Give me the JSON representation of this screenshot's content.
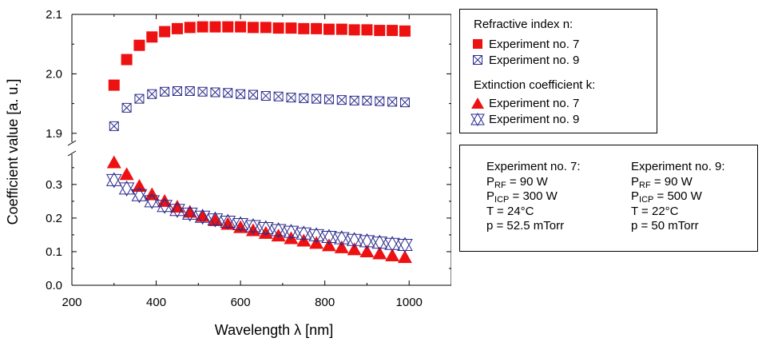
{
  "chart_data": {
    "type": "scatter",
    "xlabel": "Wavelength λ [nm]",
    "ylabel": "Coefficient value [a. u.]",
    "axis_break": true,
    "upper_panel": {
      "ylim": [
        1.885,
        2.1
      ],
      "ytick_labels": [
        "1.9",
        "2.0",
        "2.1"
      ],
      "ytick_values": [
        1.9,
        2.0,
        2.1
      ]
    },
    "lower_panel": {
      "ylim": [
        0.0,
        0.39
      ],
      "ytick_labels": [
        "0.0",
        "0.1",
        "0.2",
        "0.3"
      ],
      "ytick_values": [
        0.0,
        0.1,
        0.2,
        0.3
      ]
    },
    "xlim": [
      200,
      1100
    ],
    "xtick_labels": [
      "200",
      "400",
      "600",
      "800",
      "1000"
    ],
    "xtick_values": [
      200,
      400,
      600,
      800,
      1000
    ],
    "x": [
      300,
      330,
      360,
      390,
      420,
      450,
      480,
      510,
      540,
      570,
      600,
      630,
      660,
      690,
      720,
      750,
      780,
      810,
      840,
      870,
      900,
      930,
      960,
      990
    ],
    "series": [
      {
        "name": "Experiment no. 7",
        "group": "Refractive index n",
        "marker": "square",
        "color": "#ee1111",
        "panel": "upper",
        "values": [
          1.981,
          2.024,
          2.048,
          2.062,
          2.071,
          2.076,
          2.078,
          2.079,
          2.079,
          2.079,
          2.079,
          2.078,
          2.078,
          2.077,
          2.077,
          2.076,
          2.076,
          2.075,
          2.075,
          2.074,
          2.074,
          2.073,
          2.073,
          2.072
        ]
      },
      {
        "name": "Experiment no. 9",
        "group": "Refractive index n",
        "marker": "boxed-x",
        "color": "#2b2b8c",
        "panel": "upper",
        "values": [
          1.912,
          1.943,
          1.958,
          1.966,
          1.97,
          1.971,
          1.971,
          1.97,
          1.969,
          1.968,
          1.966,
          1.965,
          1.963,
          1.962,
          1.96,
          1.959,
          1.958,
          1.957,
          1.956,
          1.955,
          1.955,
          1.954,
          1.953,
          1.952
        ]
      },
      {
        "name": "Experiment no. 7",
        "group": "Extinction coefficient k",
        "marker": "triangle",
        "color": "#ee1111",
        "panel": "lower",
        "values": [
          0.365,
          0.33,
          0.295,
          0.27,
          0.25,
          0.233,
          0.218,
          0.206,
          0.193,
          0.182,
          0.172,
          0.163,
          0.155,
          0.147,
          0.139,
          0.132,
          0.125,
          0.118,
          0.112,
          0.106,
          0.1,
          0.094,
          0.088,
          0.083
        ]
      },
      {
        "name": "Experiment no. 9",
        "group": "Extinction coefficient k",
        "marker": "boxed-x",
        "color": "#2b2b8c",
        "panel": "lower",
        "values": [
          0.313,
          0.288,
          0.268,
          0.25,
          0.236,
          0.224,
          0.213,
          0.204,
          0.196,
          0.189,
          0.182,
          0.176,
          0.17,
          0.164,
          0.159,
          0.154,
          0.149,
          0.144,
          0.14,
          0.135,
          0.131,
          0.127,
          0.123,
          0.12
        ]
      }
    ]
  },
  "legend": {
    "n_heading": "Refractive index n:",
    "k_heading": "Extinction coefficient k:",
    "n_items": [
      "Experiment no. 7",
      "Experiment no. 9"
    ],
    "k_items": [
      "Experiment no. 7",
      "Experiment no. 9"
    ]
  },
  "parameters": {
    "exp7": {
      "title": "Experiment no. 7:",
      "rf": "= 90 W",
      "icp": "= 300 W",
      "t": "T = 24°C",
      "p": "p = 52.5 mTorr"
    },
    "exp9": {
      "title": "Experiment no. 9:",
      "rf": "= 90 W",
      "icp": "= 500 W",
      "t": "T = 22°C",
      "p": "p = 50 mTorr"
    },
    "p_symbol": "P",
    "rf_sub": "RF",
    "icp_sub": "ICP"
  },
  "colors": {
    "red": "#ee1111",
    "blue": "#2b2b8c"
  }
}
